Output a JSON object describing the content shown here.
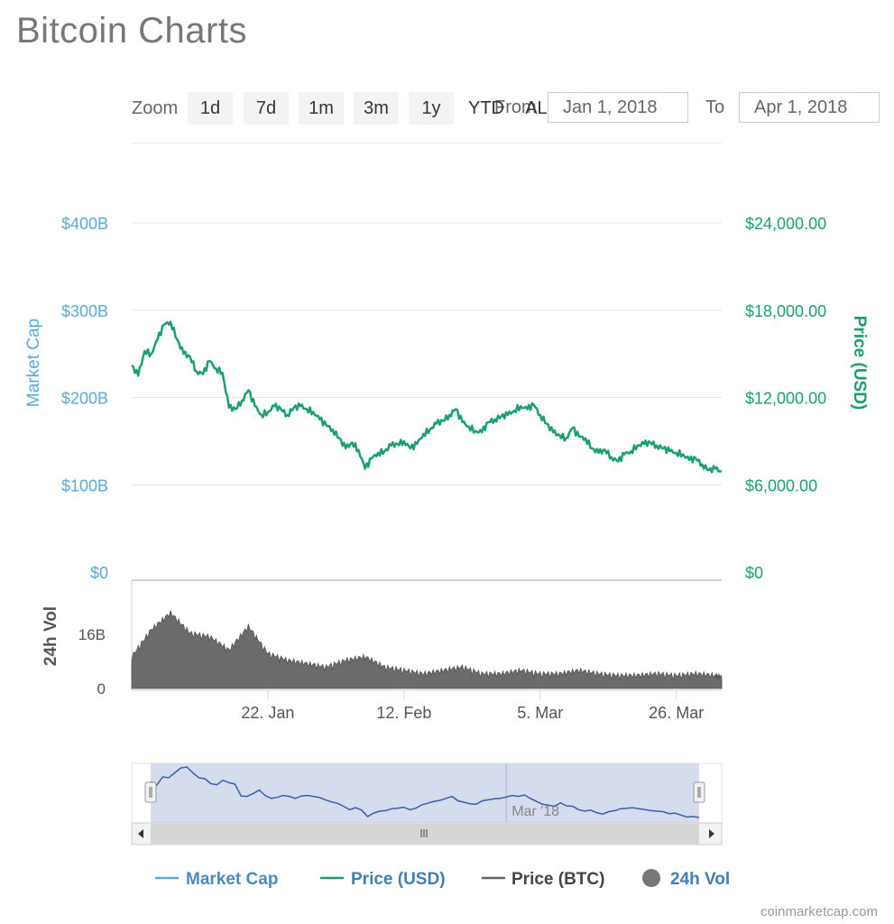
{
  "page": {
    "title": "Bitcoin Charts",
    "footer": "coinmarketcap.com"
  },
  "zoom": {
    "label": "Zoom",
    "buttons": [
      "1d",
      "7d",
      "1m",
      "3m",
      "1y",
      "YTD",
      "ALL"
    ],
    "from_label": "From",
    "from_value": "Jan 1, 2018",
    "to_label": "To",
    "to_value": "Apr 1, 2018"
  },
  "colors": {
    "market_cap": "#5aa9d6",
    "price_usd": "#1b9e77",
    "price_btc": "#666666",
    "volume": "#6b6b6b",
    "navigator_fill": "#cdd6ea",
    "navigator_line": "#3c5ea8"
  },
  "chart_data": {
    "type": "line",
    "title": "",
    "x_ticks": [
      "22. Jan",
      "12. Feb",
      "5. Mar",
      "26. Mar"
    ],
    "x_tick_days": [
      21,
      42,
      63,
      84
    ],
    "x_range_days": [
      0,
      91
    ],
    "left_axis": {
      "label": "Market Cap",
      "ticks": [
        "$0",
        "$100B",
        "$200B",
        "$300B",
        "$400B"
      ],
      "tick_values": [
        0,
        100,
        200,
        300,
        400
      ],
      "unit": "billions USD"
    },
    "right_axis": {
      "label": "Price (USD)",
      "ticks": [
        "$0",
        "$6,000.00",
        "$12,000.00",
        "$18,000.00",
        "$24,000.00"
      ],
      "tick_values": [
        0,
        6000,
        12000,
        18000,
        24000
      ],
      "range": [
        0,
        24000
      ]
    },
    "price_usd": {
      "name": "Price (USD)",
      "days": [
        0,
        1,
        2,
        3,
        4,
        5,
        6,
        7,
        8,
        9,
        10,
        11,
        12,
        13,
        14,
        15,
        16,
        17,
        18,
        19,
        20,
        21,
        22,
        23,
        24,
        25,
        26,
        27,
        28,
        29,
        30,
        31,
        32,
        33,
        34,
        35,
        36,
        37,
        38,
        39,
        40,
        41,
        42,
        43,
        44,
        45,
        46,
        47,
        48,
        49,
        50,
        51,
        52,
        53,
        54,
        55,
        56,
        57,
        58,
        59,
        60,
        61,
        62,
        63,
        64,
        65,
        66,
        67,
        68,
        69,
        70,
        71,
        72,
        73,
        74,
        75,
        76,
        77,
        78,
        79,
        80,
        81,
        82,
        83,
        84,
        85,
        86,
        87,
        88,
        89,
        90,
        91
      ],
      "values": [
        14200,
        13500,
        15200,
        15000,
        16000,
        17000,
        17200,
        16000,
        15000,
        14800,
        13800,
        13600,
        14500,
        14000,
        13700,
        11300,
        11200,
        11800,
        12500,
        11400,
        10800,
        11000,
        11400,
        11200,
        10800,
        11300,
        11400,
        11200,
        11000,
        10500,
        10100,
        9800,
        9200,
        8500,
        8900,
        8400,
        7100,
        7800,
        8200,
        8300,
        8700,
        8800,
        9000,
        8500,
        8800,
        9500,
        9800,
        10200,
        10400,
        10800,
        11200,
        10300,
        10000,
        9700,
        9600,
        10300,
        10500,
        10700,
        10800,
        11100,
        11400,
        11200,
        11500,
        10800,
        10200,
        9600,
        9400,
        9200,
        9900,
        9300,
        9200,
        8500,
        8200,
        8400,
        7900,
        7600,
        8100,
        8300,
        8700,
        8800,
        8900,
        8700,
        8500,
        8300,
        8200,
        8100,
        7700,
        7800,
        7400,
        7000,
        7100,
        6900
      ]
    },
    "volume": {
      "name": "24h Vol",
      "axis_ticks": [
        "0",
        "16B"
      ],
      "axis_tick_values": [
        0,
        16
      ],
      "range": [
        0,
        32
      ],
      "unit": "billions USD",
      "days": [
        0,
        3,
        6,
        9,
        12,
        15,
        18,
        21,
        24,
        27,
        30,
        33,
        36,
        39,
        42,
        45,
        48,
        51,
        54,
        57,
        60,
        63,
        66,
        69,
        72,
        75,
        78,
        81,
        84,
        87,
        90,
        91
      ],
      "values": [
        9,
        17,
        22,
        16,
        15,
        11,
        18,
        10,
        8,
        7,
        6,
        8,
        9,
        6,
        5,
        4,
        5,
        6,
        4,
        4,
        5,
        4,
        4,
        5,
        4,
        3.5,
        3.5,
        4,
        3.5,
        4,
        3.5,
        3
      ]
    },
    "navigator": {
      "label": "Mar '18",
      "label_day": 59
    },
    "legend": [
      {
        "name": "Market Cap",
        "symbol": "line"
      },
      {
        "name": "Price (USD)",
        "symbol": "line"
      },
      {
        "name": "Price (BTC)",
        "symbol": "line"
      },
      {
        "name": "24h Vol",
        "symbol": "circle"
      }
    ]
  }
}
